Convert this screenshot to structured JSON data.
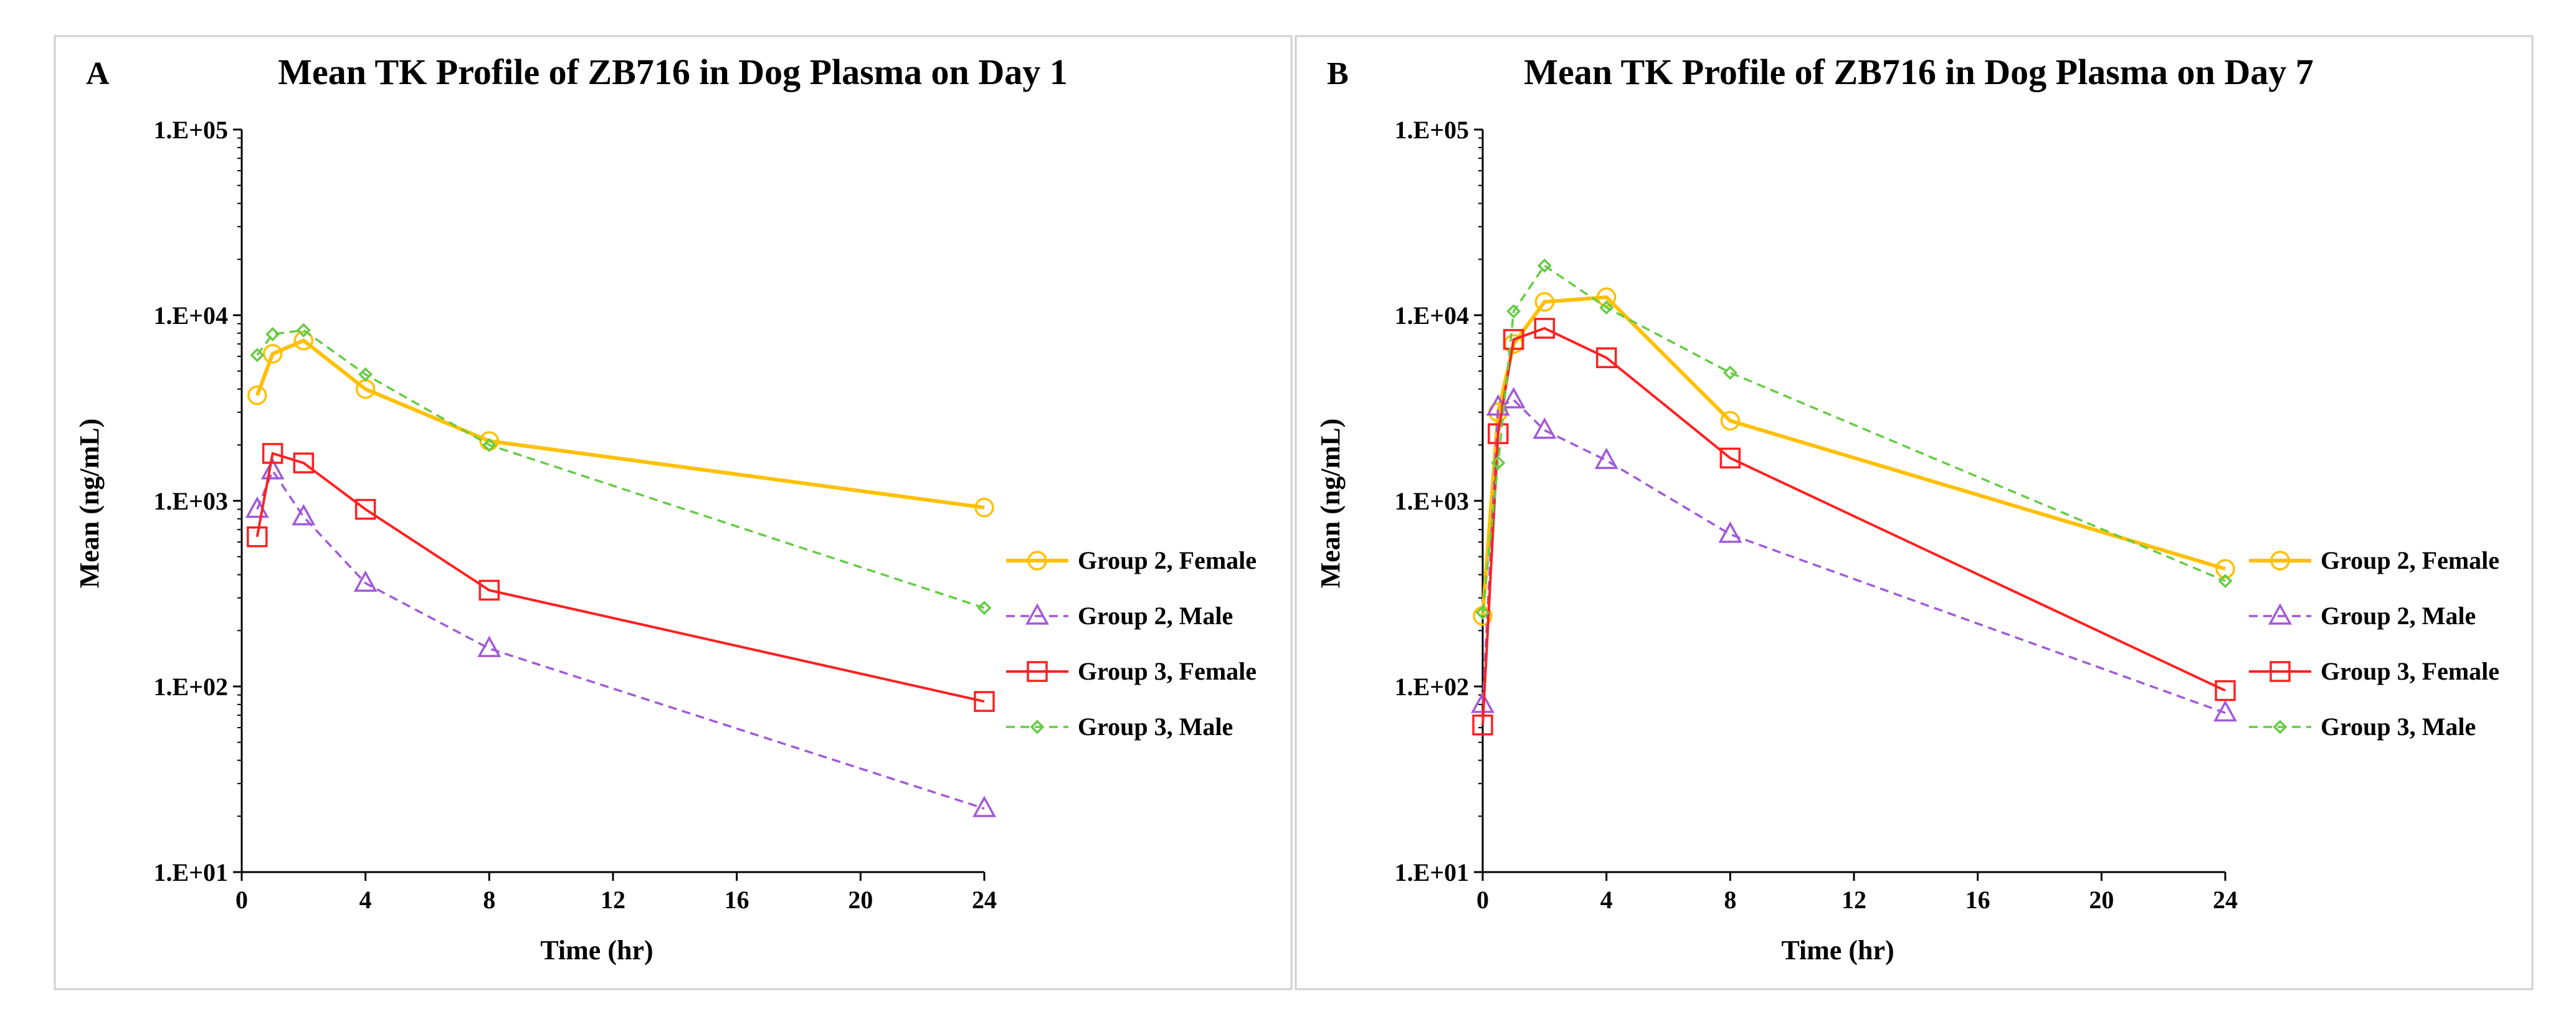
{
  "colors": {
    "group2_female": "#FFC000",
    "group2_male": "#A259D9",
    "group3_female": "#FF2020",
    "group3_male": "#66CC44"
  },
  "chart_data": [
    {
      "panel": "A",
      "type": "line",
      "title": "Mean TK Profile of ZB716 in Dog Plasma on Day 1",
      "xlabel": "Time (hr)",
      "ylabel": "Mean (ng/mL)",
      "yscale": "log",
      "xlim": [
        0,
        24
      ],
      "ylim": [
        10,
        100000
      ],
      "xticks": [
        0,
        4,
        8,
        12,
        16,
        20,
        24
      ],
      "xtick_labels": [
        "0",
        "4",
        "8",
        "12",
        "16",
        "20",
        "24"
      ],
      "yticks": [
        10,
        100,
        1000,
        10000,
        100000
      ],
      "ytick_labels": [
        "1.E+01",
        "1.E+02",
        "1.E+03",
        "1.E+04",
        "1.E+05"
      ],
      "legend_position": "right",
      "series": [
        {
          "name": "Group 2, Female",
          "key": "group2_female",
          "marker": "circle",
          "dash": "solid",
          "width": 6,
          "x": [
            0.5,
            1,
            2,
            4,
            8,
            24
          ],
          "y": [
            3700,
            6200,
            7300,
            4000,
            2100,
            920
          ]
        },
        {
          "name": "Group 2, Male",
          "key": "group2_male",
          "marker": "triangle",
          "dash": "dashed",
          "width": 3.5,
          "x": [
            0.5,
            1,
            2,
            4,
            8,
            24
          ],
          "y": [
            900,
            1450,
            820,
            360,
            160,
            22
          ]
        },
        {
          "name": "Group 3, Female",
          "key": "group3_female",
          "marker": "square",
          "dash": "solid",
          "width": 4,
          "x": [
            0.5,
            1,
            2,
            4,
            8,
            24
          ],
          "y": [
            640,
            1800,
            1600,
            900,
            330,
            83
          ]
        },
        {
          "name": "Group 3, Male",
          "key": "group3_male",
          "marker": "diamond",
          "dash": "dashed",
          "width": 3.5,
          "x": [
            0.5,
            1,
            2,
            4,
            8,
            24
          ],
          "y": [
            6100,
            7900,
            8300,
            4800,
            2000,
            265
          ]
        }
      ]
    },
    {
      "panel": "B",
      "type": "line",
      "title": "Mean TK Profile of ZB716 in Dog Plasma on Day 7",
      "xlabel": "Time (hr)",
      "ylabel": "Mean (ng/mL)",
      "yscale": "log",
      "xlim": [
        0,
        24
      ],
      "ylim": [
        10,
        100000
      ],
      "xticks": [
        0,
        4,
        8,
        12,
        16,
        20,
        24
      ],
      "xtick_labels": [
        "0",
        "4",
        "8",
        "12",
        "16",
        "20",
        "24"
      ],
      "yticks": [
        10,
        100,
        1000,
        10000,
        100000
      ],
      "ytick_labels": [
        "1.E+01",
        "1.E+02",
        "1.E+03",
        "1.E+04",
        "1.E+05"
      ],
      "legend_position": "right",
      "series": [
        {
          "name": "Group 2, Female",
          "key": "group2_female",
          "marker": "circle",
          "dash": "solid",
          "width": 6,
          "x": [
            0,
            0.5,
            1,
            2,
            4,
            8,
            24
          ],
          "y": [
            240,
            3000,
            7000,
            11800,
            12500,
            2700,
            430
          ]
        },
        {
          "name": "Group 2, Male",
          "key": "group2_male",
          "marker": "triangle",
          "dash": "dashed",
          "width": 3.5,
          "x": [
            0,
            0.5,
            1,
            2,
            4,
            8,
            24
          ],
          "y": [
            80,
            3200,
            3500,
            2400,
            1650,
            660,
            72
          ]
        },
        {
          "name": "Group 3, Female",
          "key": "group3_female",
          "marker": "square",
          "dash": "solid",
          "width": 4,
          "x": [
            0,
            0.5,
            1,
            2,
            4,
            8,
            24
          ],
          "y": [
            62,
            2300,
            7400,
            8500,
            5900,
            1700,
            95
          ]
        },
        {
          "name": "Group 3, Male",
          "key": "group3_male",
          "marker": "diamond",
          "dash": "dashed",
          "width": 3.5,
          "x": [
            0,
            0.5,
            1,
            2,
            4,
            8,
            24
          ],
          "y": [
            250,
            1600,
            10500,
            18500,
            11000,
            4900,
            370
          ]
        }
      ]
    }
  ]
}
